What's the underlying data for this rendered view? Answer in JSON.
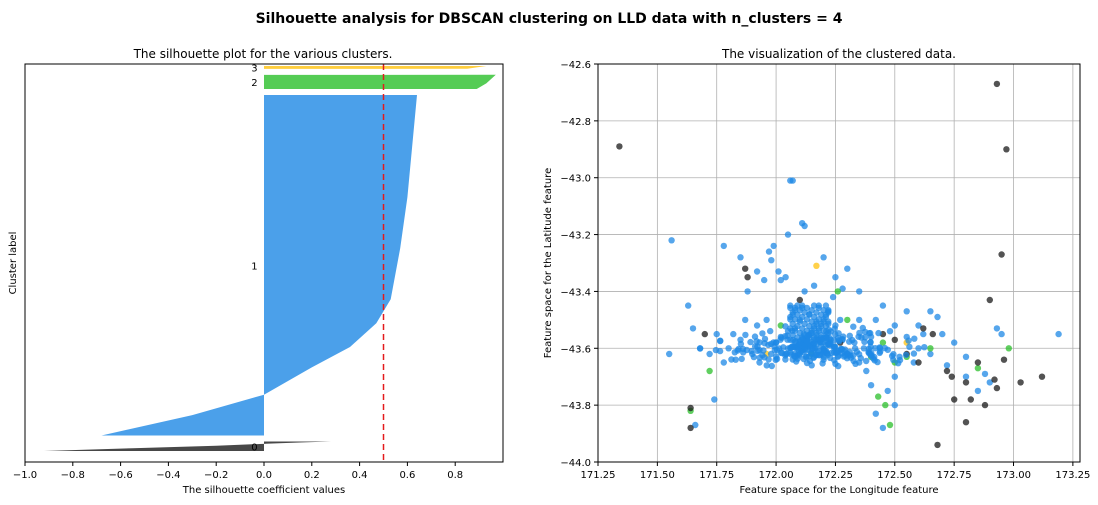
{
  "suptitle": "Silhouette analysis for DBSCAN clustering on LLD data with n_clusters = 4",
  "chart_data": [
    {
      "type": "area",
      "title": "The silhouette plot for the various clusters.",
      "xlabel": "The silhouette coefficient values",
      "ylabel": "Cluster label",
      "xlim": [
        -1.0,
        1.0
      ],
      "xticks": [
        -1.0,
        -0.8,
        -0.6,
        -0.4,
        -0.2,
        0.0,
        0.2,
        0.4,
        0.6,
        0.8
      ],
      "threshold_line": {
        "x": 0.5,
        "color": "#e41a1c"
      },
      "clusters": [
        {
          "label": "0",
          "color": "#1a1a1a",
          "size": 1,
          "profile": [
            [
              0,
              -0.92
            ],
            [
              0.3,
              -0.55
            ],
            [
              0.55,
              -0.2
            ],
            [
              0.78,
              0.02
            ],
            [
              0.9,
              0.15
            ],
            [
              1,
              0.28
            ]
          ]
        },
        {
          "label": "1",
          "color": "#1e88e5",
          "size": 36,
          "profile": [
            [
              0,
              -0.68
            ],
            [
              0.06,
              -0.3
            ],
            [
              0.12,
              0.0
            ],
            [
              0.2,
              0.2
            ],
            [
              0.26,
              0.36
            ],
            [
              0.33,
              0.47
            ],
            [
              0.4,
              0.53
            ],
            [
              0.55,
              0.57
            ],
            [
              0.7,
              0.6
            ],
            [
              0.85,
              0.62
            ],
            [
              1,
              0.64
            ]
          ]
        },
        {
          "label": "2",
          "color": "#2bbf2b",
          "size": 1.5,
          "profile": [
            [
              0,
              0.89
            ],
            [
              0.4,
              0.93
            ],
            [
              1,
              0.97
            ]
          ]
        },
        {
          "label": "3",
          "color": "#ffc20e",
          "size": 0.3,
          "profile": [
            [
              0,
              0.85
            ],
            [
              1,
              0.93
            ]
          ]
        }
      ]
    },
    {
      "type": "scatter",
      "title": "The visualization of the clustered data.",
      "xlabel": "Feature space for the Longitude feature",
      "ylabel": "Feature space for the Latitude feature",
      "xlim": [
        171.25,
        173.28
      ],
      "ylim": [
        -44.0,
        -42.6
      ],
      "xticks": [
        171.25,
        171.5,
        171.75,
        172.0,
        172.25,
        172.5,
        172.75,
        173.0,
        173.25
      ],
      "yticks": [
        -42.6,
        -42.8,
        -43.0,
        -43.2,
        -43.4,
        -43.6,
        -43.8,
        -44.0
      ],
      "grid": true,
      "series": [
        {
          "color": "#1e88e5",
          "points": [
            [
              171.56,
              -43.22
            ],
            [
              171.63,
              -43.45
            ],
            [
              171.65,
              -43.53
            ],
            [
              171.68,
              -43.6
            ],
            [
              171.72,
              -43.62
            ],
            [
              171.74,
              -43.78
            ],
            [
              171.66,
              -43.87
            ],
            [
              171.55,
              -43.62
            ],
            [
              171.78,
              -43.24
            ],
            [
              171.85,
              -43.28
            ],
            [
              171.92,
              -43.33
            ],
            [
              171.95,
              -43.36
            ],
            [
              171.97,
              -43.26
            ],
            [
              171.99,
              -43.24
            ],
            [
              172.06,
              -43.01
            ],
            [
              172.07,
              -43.01
            ],
            [
              172.11,
              -43.16
            ],
            [
              172.12,
              -43.17
            ],
            [
              172.05,
              -43.2
            ],
            [
              172.01,
              -43.33
            ],
            [
              172.04,
              -43.35
            ],
            [
              171.88,
              -43.4
            ],
            [
              172.2,
              -43.28
            ],
            [
              172.25,
              -43.35
            ],
            [
              172.28,
              -43.39
            ],
            [
              172.3,
              -43.32
            ],
            [
              172.35,
              -43.4
            ],
            [
              172.45,
              -43.45
            ],
            [
              172.55,
              -43.47
            ],
            [
              172.6,
              -43.52
            ],
            [
              172.65,
              -43.47
            ],
            [
              172.68,
              -43.49
            ],
            [
              172.7,
              -43.55
            ],
            [
              172.75,
              -43.58
            ],
            [
              172.8,
              -43.63
            ],
            [
              172.88,
              -43.69
            ],
            [
              172.93,
              -43.53
            ],
            [
              172.95,
              -43.55
            ],
            [
              173.19,
              -43.55
            ],
            [
              172.65,
              -43.62
            ],
            [
              172.5,
              -43.7
            ],
            [
              172.47,
              -43.75
            ],
            [
              172.4,
              -43.73
            ],
            [
              172.38,
              -43.68
            ],
            [
              172.35,
              -43.65
            ],
            [
              172.42,
              -43.83
            ],
            [
              172.5,
              -43.8
            ],
            [
              172.45,
              -43.88
            ],
            [
              171.82,
              -43.55
            ],
            [
              171.85,
              -43.57
            ],
            [
              171.9,
              -43.62
            ],
            [
              171.93,
              -43.65
            ],
            [
              172.0,
              -43.58
            ],
            [
              172.02,
              -43.56
            ],
            [
              172.05,
              -43.54
            ],
            [
              172.1,
              -43.62
            ],
            [
              172.15,
              -43.66
            ],
            [
              172.2,
              -43.64
            ],
            [
              172.3,
              -43.62
            ],
            [
              172.33,
              -43.58
            ],
            [
              172.4,
              -43.56
            ],
            [
              172.48,
              -43.54
            ],
            [
              172.55,
              -43.56
            ],
            [
              172.6,
              -43.6
            ],
            [
              172.25,
              -43.52
            ],
            [
              172.27,
              -43.5
            ],
            [
              172.22,
              -43.47
            ],
            [
              172.18,
              -43.45
            ],
            [
              172.14,
              -43.48
            ],
            [
              172.1,
              -43.5
            ],
            [
              172.08,
              -43.53
            ],
            [
              171.96,
              -43.5
            ],
            [
              171.78,
              -43.65
            ],
            [
              171.8,
              -43.6
            ],
            [
              171.75,
              -43.55
            ],
            [
              172.62,
              -43.55
            ],
            [
              172.58,
              -43.65
            ],
            [
              172.52,
              -43.63
            ],
            [
              172.12,
              -43.4
            ],
            [
              172.16,
              -43.38
            ],
            [
              172.24,
              -43.42
            ],
            [
              172.35,
              -43.5
            ],
            [
              172.42,
              -43.5
            ],
            [
              172.5,
              -43.52
            ],
            [
              172.37,
              -43.6
            ],
            [
              172.28,
              -43.57
            ],
            [
              172.19,
              -43.58
            ],
            [
              172.13,
              -43.57
            ],
            [
              171.87,
              -43.5
            ],
            [
              171.92,
              -43.52
            ],
            [
              172.72,
              -43.66
            ],
            [
              172.8,
              -43.7
            ],
            [
              172.85,
              -43.75
            ],
            [
              172.9,
              -43.72
            ],
            [
              171.98,
              -43.29
            ],
            [
              172.02,
              -43.36
            ]
          ]
        },
        {
          "color": "#2bbf2b",
          "points": [
            [
              171.64,
              -43.82
            ],
            [
              171.72,
              -43.68
            ],
            [
              172.15,
              -43.62
            ],
            [
              172.3,
              -43.5
            ],
            [
              172.4,
              -43.63
            ],
            [
              172.45,
              -43.58
            ],
            [
              172.5,
              -43.65
            ],
            [
              172.46,
              -43.8
            ],
            [
              172.48,
              -43.87
            ],
            [
              172.55,
              -43.63
            ],
            [
              172.65,
              -43.6
            ],
            [
              172.85,
              -43.67
            ],
            [
              172.98,
              -43.6
            ],
            [
              172.02,
              -43.52
            ],
            [
              172.26,
              -43.4
            ],
            [
              172.43,
              -43.77
            ]
          ]
        },
        {
          "color": "#ffc20e",
          "points": [
            [
              172.17,
              -43.31
            ],
            [
              171.96,
              -43.62
            ],
            [
              172.55,
              -43.58
            ]
          ]
        },
        {
          "color": "#1a1a1a",
          "points": [
            [
              171.34,
              -42.89
            ],
            [
              171.64,
              -43.81
            ],
            [
              171.64,
              -43.88
            ],
            [
              171.7,
              -43.55
            ],
            [
              171.87,
              -43.32
            ],
            [
              171.88,
              -43.35
            ],
            [
              172.1,
              -43.43
            ],
            [
              172.45,
              -43.55
            ],
            [
              172.5,
              -43.57
            ],
            [
              172.55,
              -43.62
            ],
            [
              172.6,
              -43.65
            ],
            [
              172.62,
              -43.53
            ],
            [
              172.66,
              -43.55
            ],
            [
              172.72,
              -43.68
            ],
            [
              172.74,
              -43.7
            ],
            [
              172.75,
              -43.78
            ],
            [
              172.8,
              -43.72
            ],
            [
              172.82,
              -43.78
            ],
            [
              172.85,
              -43.65
            ],
            [
              172.88,
              -43.8
            ],
            [
              172.9,
              -43.43
            ],
            [
              172.92,
              -43.71
            ],
            [
              172.93,
              -43.74
            ],
            [
              172.95,
              -43.27
            ],
            [
              172.97,
              -42.9
            ],
            [
              172.93,
              -42.67
            ],
            [
              173.03,
              -43.72
            ],
            [
              173.12,
              -43.7
            ],
            [
              172.96,
              -43.64
            ],
            [
              172.27,
              -43.58
            ],
            [
              172.68,
              -43.94
            ],
            [
              172.8,
              -43.86
            ]
          ]
        }
      ]
    }
  ]
}
